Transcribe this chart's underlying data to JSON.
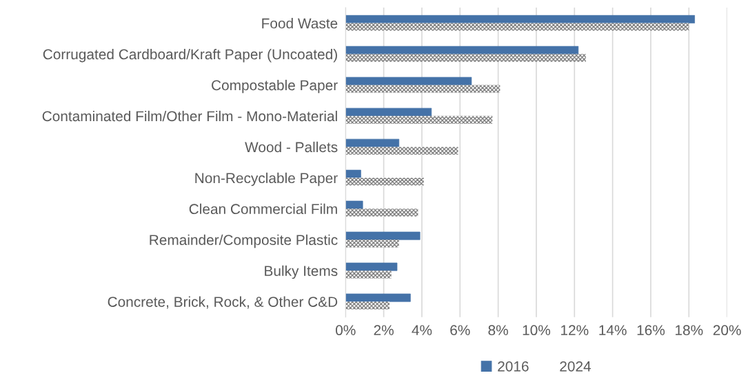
{
  "chart_data": {
    "type": "bar",
    "orientation": "horizontal",
    "categories": [
      "Food Waste",
      "Corrugated Cardboard/Kraft Paper (Uncoated)",
      "Compostable Paper",
      "Contaminated Film/Other Film - Mono-Material",
      "Wood - Pallets",
      "Non-Recyclable Paper",
      "Clean Commercial Film",
      "Remainder/Composite Plastic",
      "Bulky Items",
      "Concrete, Brick, Rock, & Other C&D"
    ],
    "series": [
      {
        "name": "2016",
        "color": "#4472a8",
        "values": [
          18.3,
          12.2,
          6.6,
          4.5,
          2.8,
          0.8,
          0.9,
          3.9,
          2.7,
          3.4
        ]
      },
      {
        "name": "2024",
        "color": "#7f7f7f",
        "values": [
          18.0,
          12.6,
          8.1,
          7.7,
          5.9,
          4.1,
          3.8,
          2.8,
          2.4,
          2.3
        ]
      }
    ],
    "xlim": [
      0,
      20
    ],
    "xticks": [
      {
        "value": 0,
        "label": "0%"
      },
      {
        "value": 2,
        "label": "2%"
      },
      {
        "value": 4,
        "label": "4%"
      },
      {
        "value": 6,
        "label": "6%"
      },
      {
        "value": 8,
        "label": "8%"
      },
      {
        "value": 10,
        "label": "10%"
      },
      {
        "value": 12,
        "label": "12%"
      },
      {
        "value": 14,
        "label": "14%"
      },
      {
        "value": 16,
        "label": "16%"
      },
      {
        "value": 18,
        "label": "18%"
      },
      {
        "value": 20,
        "label": "20%"
      }
    ],
    "grid": "x",
    "legend": "bottom"
  }
}
